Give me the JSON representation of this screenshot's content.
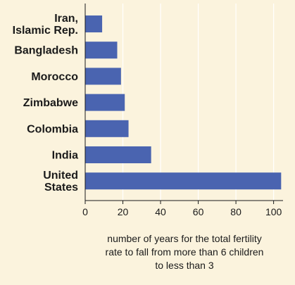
{
  "chart_data": {
    "type": "bar",
    "orientation": "horizontal",
    "categories": [
      [
        "Iran,",
        "Islamic Rep."
      ],
      [
        "Bangladesh"
      ],
      [
        "Morocco"
      ],
      [
        "Zimbabwe"
      ],
      [
        "Colombia"
      ],
      [
        "India"
      ],
      [
        "United",
        "States"
      ]
    ],
    "values": [
      9,
      17,
      19,
      21,
      23,
      35,
      104
    ],
    "xticks": [
      "0",
      "20",
      "40",
      "60",
      "80",
      "100"
    ],
    "xlim": [
      0,
      105
    ],
    "xlabel": [
      "number of years for the total fertility",
      "rate to fall from more than 6 children",
      "to less than 3"
    ],
    "title": "",
    "ylabel": "",
    "grid": "vertical",
    "bar_color": "#4a64b0",
    "grid_color": "#ffffff",
    "background_color": "#fbf3dd"
  }
}
